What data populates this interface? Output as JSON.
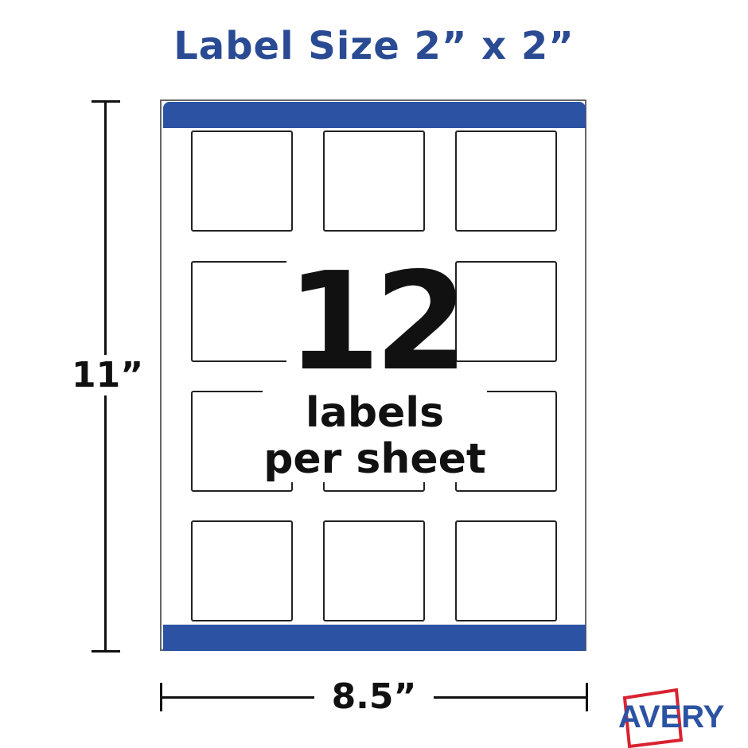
{
  "title": "Label Size 2” x 2”",
  "count": "12",
  "count_caption": [
    "labels",
    "per sheet"
  ],
  "height_label": "11”",
  "width_label": "8.5”",
  "brand": "AVERY",
  "colors": {
    "brand_blue": "#2b52a3",
    "logo_red": "#d92231",
    "title_blue": "#2a4b93"
  }
}
